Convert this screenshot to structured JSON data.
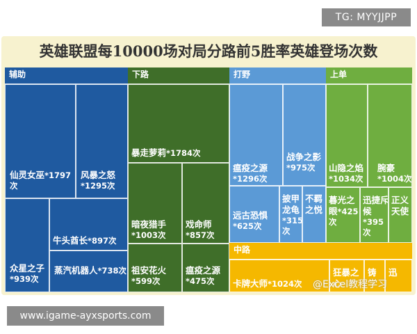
{
  "tag": "TG: MYYJJPP",
  "footer": "www.igame-ayxsports.com",
  "watermark": "@Excel教程学习",
  "chart_data": {
    "type": "treemap",
    "title": "英雄联盟每10000场对局分路前5胜率英雄登场次数",
    "colors": {
      "辅助": "#1f5aa0",
      "下路": "#3f6e29",
      "打野": "#5b9ad6",
      "上单": "#6fae40",
      "中路": "#f5b800"
    },
    "groups": [
      {
        "name": "辅助",
        "items": [
          {
            "name": "仙灵女巫",
            "count": "*1797次"
          },
          {
            "name": "风暴之怒",
            "count": "*1295次"
          },
          {
            "name": "牛头酋长",
            "count": "*897次"
          },
          {
            "name": "众星之子",
            "count": "*939次"
          },
          {
            "name": "蒸汽机器人",
            "count": "*738次"
          }
        ]
      },
      {
        "name": "下路",
        "items": [
          {
            "name": "暴走萝莉",
            "count": "*1784次"
          },
          {
            "name": "暗夜猎手",
            "count": "*1003次"
          },
          {
            "name": "戏命师",
            "count": "*857次"
          },
          {
            "name": "祖安花火",
            "count": "*599次"
          },
          {
            "name": "瘟疫之源",
            "count": "*475次"
          }
        ]
      },
      {
        "name": "打野",
        "items": [
          {
            "name": "瘟疫之源",
            "count": "*1296次"
          },
          {
            "name": "战争之影",
            "count": "*975次"
          },
          {
            "name": "远古恐惧",
            "count": "*625次"
          },
          {
            "name": "披甲龙龟",
            "count": "*315次"
          },
          {
            "name": "不羁之悦",
            "count": ""
          }
        ]
      },
      {
        "name": "上单",
        "items": [
          {
            "name": "山隐之焰",
            "count": "*1034次"
          },
          {
            "name": "腕豪",
            "count": "*1004次"
          },
          {
            "name": "暮光之眼",
            "count": "*425次"
          },
          {
            "name": "迅捷斥候",
            "count": "*395次"
          },
          {
            "name": "正义天使",
            "count": ""
          }
        ]
      },
      {
        "name": "中路",
        "items": [
          {
            "name": "卡牌大师",
            "count": "*1024次"
          },
          {
            "name": "狂暴之心",
            "count": ""
          },
          {
            "name": "铸",
            "count": ""
          },
          {
            "name": "迅",
            "count": ""
          }
        ]
      }
    ]
  }
}
